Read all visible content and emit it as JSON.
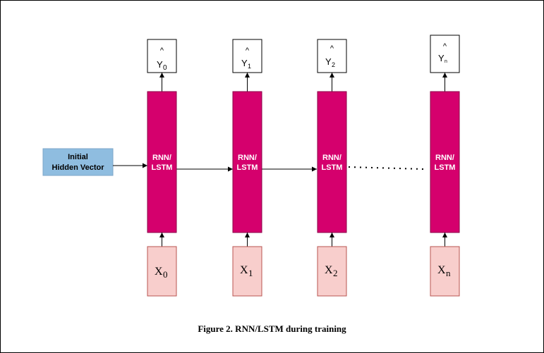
{
  "colors": {
    "cell_fill": "#d5006d",
    "cell_text": "#ffffff",
    "input_fill": "#f8cecc",
    "input_stroke": "#b85450",
    "hidden_fill": "#8fbde0",
    "hidden_stroke": "#7ea6c8",
    "line": "#000000"
  },
  "hidden_vector": {
    "line1": "Initial",
    "line2": "Hidden Vector"
  },
  "cells": [
    {
      "label1": "RNN/",
      "label2": "LSTM",
      "output": {
        "hat": "^",
        "base": "Y",
        "sub": "0"
      },
      "input": {
        "base": "X",
        "sub": "0"
      }
    },
    {
      "label1": "RNN/",
      "label2": "LSTM",
      "output": {
        "hat": "^",
        "base": "Y",
        "sub": "1"
      },
      "input": {
        "base": "X",
        "sub": "1"
      }
    },
    {
      "label1": "RNN/",
      "label2": "LSTM",
      "output": {
        "hat": "^",
        "base": "Y",
        "sub": "2"
      },
      "input": {
        "base": "X",
        "sub": "2"
      }
    },
    {
      "label1": "RNN/",
      "label2": "LSTM",
      "output": {
        "hat": "^",
        "base": "Y",
        "sub": "n"
      },
      "input": {
        "base": "X",
        "sub": "n"
      }
    }
  ],
  "caption": "Figure 2. RNN/LSTM during training"
}
